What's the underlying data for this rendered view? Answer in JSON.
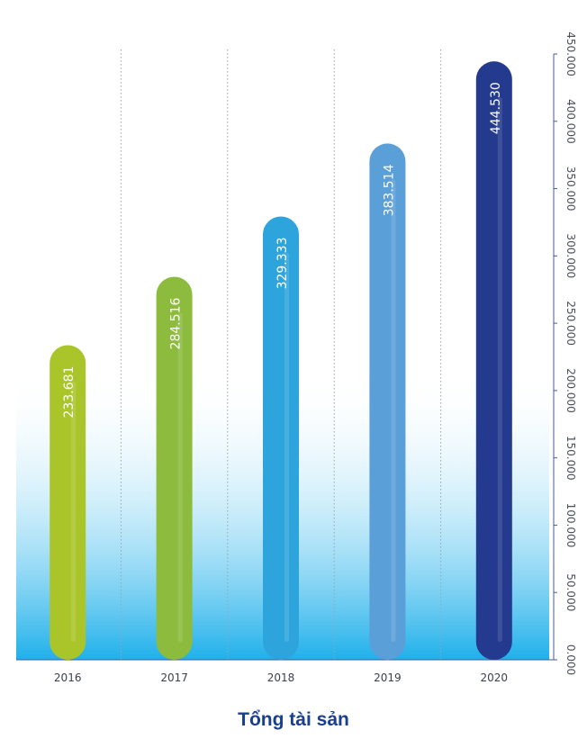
{
  "chart_data": {
    "type": "bar",
    "title": "Tổng tài sản",
    "categories": [
      "2016",
      "2017",
      "2018",
      "2019",
      "2020"
    ],
    "values": [
      233.681,
      284.516,
      329.333,
      383.514,
      444.53
    ],
    "value_labels": [
      "233.681",
      "284.516",
      "329.333",
      "383.514",
      "444.530"
    ],
    "bar_colors": [
      "#a9c52a",
      "#8dbb3e",
      "#2ea4dc",
      "#5a9fd8",
      "#233a8e"
    ],
    "ylim": [
      0,
      450
    ],
    "yticks": [
      "0.000",
      "50.000",
      "100.000",
      "150.000",
      "200.000",
      "250.000",
      "300.000",
      "350.000",
      "400.000",
      "450.000"
    ],
    "grid": "vertical dotted",
    "background_gradient": [
      "#ffffff",
      "#1fb0ea"
    ]
  }
}
